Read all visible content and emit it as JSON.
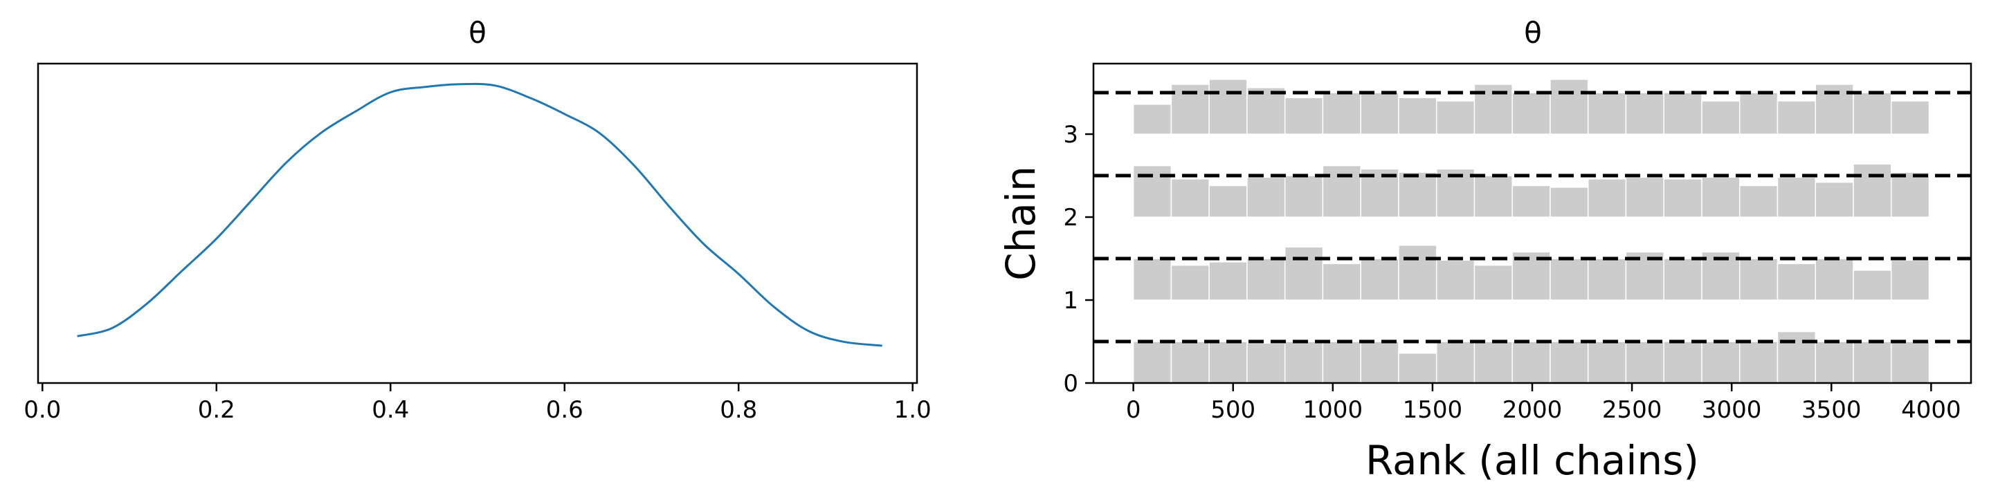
{
  "chart_data": [
    {
      "type": "line",
      "title": "θ",
      "xlabel": "",
      "ylabel": "",
      "xlim": [
        -0.005,
        1.005
      ],
      "ylim": [
        0.0,
        1.0
      ],
      "xticks": [
        "0.0",
        "0.2",
        "0.4",
        "0.6",
        "0.8",
        "1.0"
      ],
      "series": [
        {
          "color": "#1f77b4",
          "x": [
            0.04,
            0.08,
            0.12,
            0.16,
            0.2,
            0.24,
            0.28,
            0.32,
            0.36,
            0.4,
            0.44,
            0.48,
            0.52,
            0.56,
            0.6,
            0.64,
            0.68,
            0.72,
            0.76,
            0.8,
            0.84,
            0.88,
            0.92,
            0.965
          ],
          "y": [
            0.04,
            0.07,
            0.16,
            0.28,
            0.4,
            0.54,
            0.68,
            0.79,
            0.87,
            0.94,
            0.96,
            0.97,
            0.965,
            0.92,
            0.86,
            0.79,
            0.67,
            0.52,
            0.38,
            0.27,
            0.15,
            0.06,
            0.02,
            0.005
          ]
        }
      ]
    },
    {
      "type": "bar",
      "title": "θ",
      "xlabel": "Rank (all chains)",
      "ylabel": "Chain",
      "xlim": [
        -200,
        4200
      ],
      "ylim": [
        0,
        3.85
      ],
      "xticks": [
        "0",
        "500",
        "1000",
        "1500",
        "2000",
        "2500",
        "3000",
        "3500",
        "4000"
      ],
      "yticks": [
        "0",
        "1",
        "2",
        "3"
      ],
      "bin_width": 190,
      "bin_color": "#cccccc",
      "reference_color": "#000000",
      "chains": [
        {
          "chain": 0,
          "reference": 0.5,
          "heights": [
            0.5,
            0.5,
            0.5,
            0.48,
            0.5,
            0.5,
            0.5,
            0.36,
            0.5,
            0.5,
            0.5,
            0.5,
            0.5,
            0.5,
            0.5,
            0.5,
            0.5,
            0.62,
            0.5,
            0.5,
            0.5
          ]
        },
        {
          "chain": 1,
          "reference": 0.5,
          "heights": [
            0.5,
            0.42,
            0.46,
            0.5,
            0.64,
            0.44,
            0.5,
            0.66,
            0.48,
            0.42,
            0.58,
            0.5,
            0.5,
            0.58,
            0.5,
            0.58,
            0.5,
            0.44,
            0.5,
            0.36,
            0.48
          ]
        },
        {
          "chain": 2,
          "reference": 0.5,
          "heights": [
            0.62,
            0.46,
            0.38,
            0.48,
            0.5,
            0.62,
            0.58,
            0.54,
            0.58,
            0.5,
            0.38,
            0.36,
            0.46,
            0.48,
            0.46,
            0.48,
            0.38,
            0.48,
            0.42,
            0.64,
            0.54
          ]
        },
        {
          "chain": 3,
          "reference": 0.5,
          "heights": [
            0.36,
            0.6,
            0.66,
            0.56,
            0.44,
            0.5,
            0.5,
            0.44,
            0.4,
            0.6,
            0.5,
            0.66,
            0.5,
            0.5,
            0.5,
            0.4,
            0.5,
            0.4,
            0.6,
            0.5,
            0.4
          ]
        }
      ]
    }
  ]
}
